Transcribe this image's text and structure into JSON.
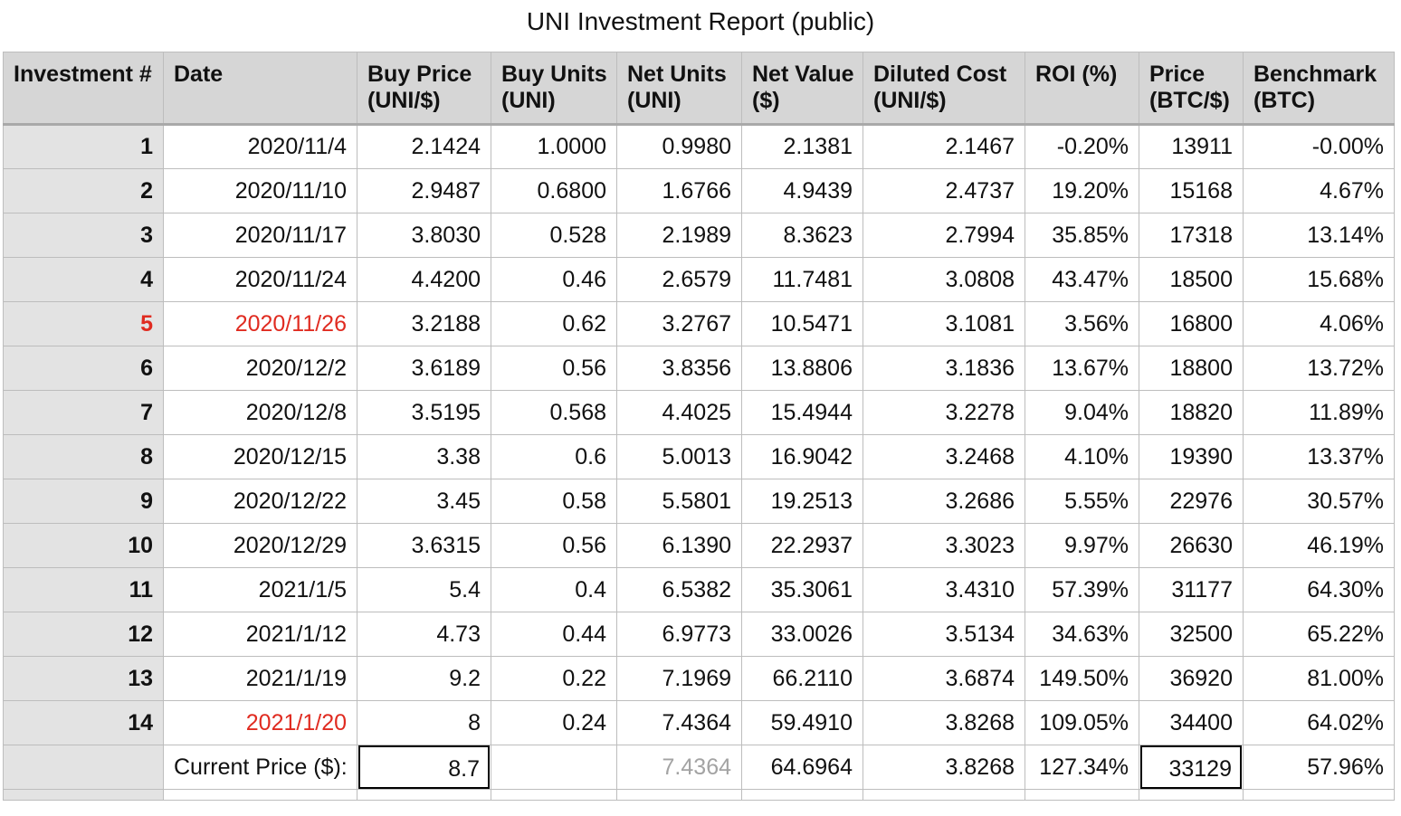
{
  "title": "UNI Investment Report (public)",
  "headers": [
    [
      "Investment #"
    ],
    [
      "Date"
    ],
    [
      "Buy Price",
      "(UNI/$)"
    ],
    [
      "Buy Units",
      "(UNI)"
    ],
    [
      "Net Units",
      "(UNI)"
    ],
    [
      "Net Value",
      "($)"
    ],
    [
      "Diluted Cost",
      "(UNI/$)"
    ],
    [
      "ROI (%)"
    ],
    [
      "Price",
      "(BTC/$)"
    ],
    [
      "Benchmark",
      "(BTC)"
    ]
  ],
  "rows": [
    [
      "1",
      "2020/11/4",
      "2.1424",
      "1.0000",
      "0.9980",
      "2.1381",
      "2.1467",
      "-0.20%",
      "13911",
      "-0.00%"
    ],
    [
      "2",
      "2020/11/10",
      "2.9487",
      "0.6800",
      "1.6766",
      "4.9439",
      "2.4737",
      "19.20%",
      "15168",
      "4.67%"
    ],
    [
      "3",
      "2020/11/17",
      "3.8030",
      "0.528",
      "2.1989",
      "8.3623",
      "2.7994",
      "35.85%",
      "17318",
      "13.14%"
    ],
    [
      "4",
      "2020/11/24",
      "4.4200",
      "0.46",
      "2.6579",
      "11.7481",
      "3.0808",
      "43.47%",
      "18500",
      "15.68%"
    ],
    [
      "5",
      "2020/11/26",
      "3.2188",
      "0.62",
      "3.2767",
      "10.5471",
      "3.1081",
      "3.56%",
      "16800",
      "4.06%"
    ],
    [
      "6",
      "2020/12/2",
      "3.6189",
      "0.56",
      "3.8356",
      "13.8806",
      "3.1836",
      "13.67%",
      "18800",
      "13.72%"
    ],
    [
      "7",
      "2020/12/8",
      "3.5195",
      "0.568",
      "4.4025",
      "15.4944",
      "3.2278",
      "9.04%",
      "18820",
      "11.89%"
    ],
    [
      "8",
      "2020/12/15",
      "3.38",
      "0.6",
      "5.0013",
      "16.9042",
      "3.2468",
      "4.10%",
      "19390",
      "13.37%"
    ],
    [
      "9",
      "2020/12/22",
      "3.45",
      "0.58",
      "5.5801",
      "19.2513",
      "3.2686",
      "5.55%",
      "22976",
      "30.57%"
    ],
    [
      "10",
      "2020/12/29",
      "3.6315",
      "0.56",
      "6.1390",
      "22.2937",
      "3.3023",
      "9.97%",
      "26630",
      "46.19%"
    ],
    [
      "11",
      "2021/1/5",
      "5.4",
      "0.4",
      "6.5382",
      "35.3061",
      "3.4310",
      "57.39%",
      "31177",
      "64.30%"
    ],
    [
      "12",
      "2021/1/12",
      "4.73",
      "0.44",
      "6.9773",
      "33.0026",
      "3.5134",
      "34.63%",
      "32500",
      "65.22%"
    ],
    [
      "13",
      "2021/1/19",
      "9.2",
      "0.22",
      "7.1969",
      "66.2110",
      "3.6874",
      "149.50%",
      "36920",
      "81.00%"
    ],
    [
      "14",
      "2021/1/20",
      "8",
      "0.24",
      "7.4364",
      "59.4910",
      "3.8268",
      "109.05%",
      "34400",
      "64.02%"
    ]
  ],
  "highlight": {
    "color": "#e02b20",
    "row_5_number": true,
    "row_5_date": true,
    "row_14_date": true
  },
  "summary": {
    "label": "Current Price ($):",
    "current_price": "8.7",
    "net_units": "7.4364",
    "net_value": "64.6964",
    "diluted_cost": "3.8268",
    "roi": "127.34%",
    "btc_price": "33129",
    "benchmark": "57.96%"
  },
  "colors": {
    "header_bg": "#d6d6d6",
    "rowheader_bg": "#e3e3e3",
    "highlight_red": "#e02b20",
    "muted_text": "#a3a3a3"
  }
}
